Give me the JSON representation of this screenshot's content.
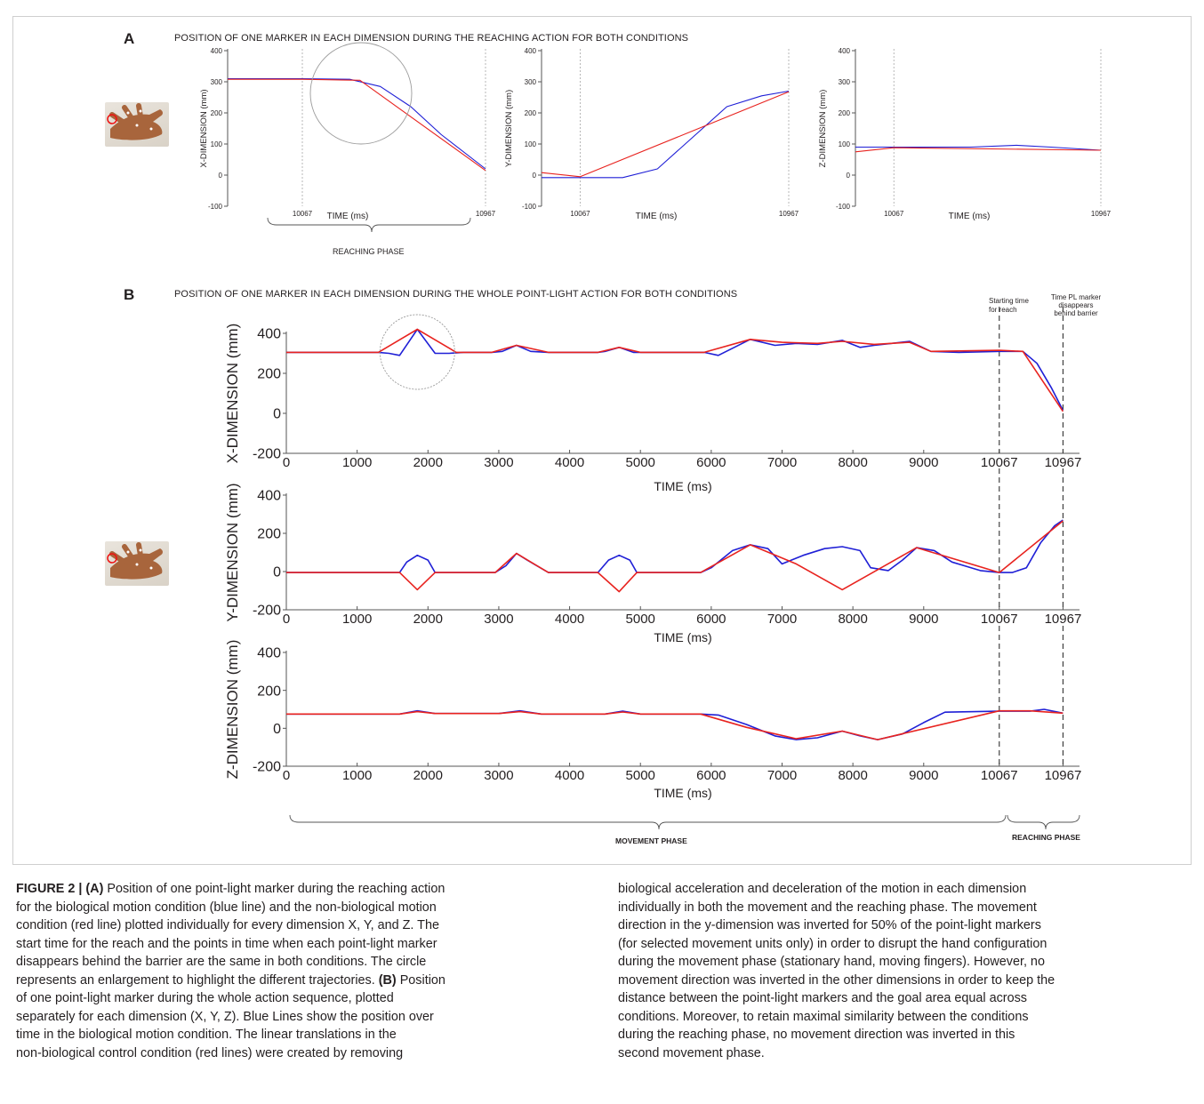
{
  "panel_a": {
    "letter": "A",
    "title": "POSITION OF ONE MARKER IN EACH DIMENSION DURING THE REACHING  ACTION FOR BOTH CONDITIONS",
    "phase_label": "REACHING PHASE"
  },
  "panel_b": {
    "letter": "B",
    "title": "POSITION OF ONE MARKER IN EACH DIMENSION DURING THE WHOLE POINT-LIGHT ACTION FOR BOTH CONDITIONS",
    "annotation_start": "Starting time for reach",
    "annotation_end": "Time PL marker disappears behind barrier",
    "movement_phase_label": "MOVEMENT PHASE",
    "reaching_phase_label": "REACHING PHASE"
  },
  "colors": {
    "biological": "#1f1fd6",
    "non_biological": "#e8231f",
    "axis": "#333333"
  },
  "chart_data": [
    {
      "type": "line",
      "panel": "A-X",
      "xlabel": "TIME (ms)",
      "ylabel": "X-DIMENSION (mm)",
      "xlim": [
        9700,
        10967
      ],
      "ylim": [
        -100,
        400
      ],
      "yticks": [
        -100,
        0,
        100,
        200,
        300,
        400
      ],
      "xtick_labels": [
        [
          "10067",
          10067
        ],
        [
          "10967",
          10967
        ]
      ],
      "vlines": [
        10067,
        10967
      ],
      "inset": true,
      "series": [
        {
          "color": "#1f1fd6",
          "x": [
            9700,
            10067,
            10300,
            10450,
            10600,
            10750,
            10967
          ],
          "y": [
            310,
            310,
            308,
            285,
            220,
            130,
            20
          ]
        },
        {
          "color": "#e8231f",
          "x": [
            9700,
            10067,
            10350,
            10967
          ],
          "y": [
            308,
            308,
            305,
            15
          ]
        }
      ]
    },
    {
      "type": "line",
      "panel": "A-Y",
      "xlabel": "TIME (ms)",
      "ylabel": "Y-DIMENSION (mm)",
      "xlim": [
        9900,
        10967
      ],
      "ylim": [
        -100,
        400
      ],
      "yticks": [
        -100,
        0,
        100,
        200,
        300,
        400
      ],
      "xtick_labels": [
        [
          "10067",
          10067
        ],
        [
          "10967",
          10967
        ]
      ],
      "vlines": [
        10067,
        10967
      ],
      "series": [
        {
          "color": "#1f1fd6",
          "x": [
            9900,
            10067,
            10250,
            10400,
            10550,
            10700,
            10850,
            10967
          ],
          "y": [
            -8,
            -8,
            -8,
            20,
            120,
            220,
            255,
            270
          ]
        },
        {
          "color": "#e8231f",
          "x": [
            9900,
            10067,
            10967
          ],
          "y": [
            8,
            -5,
            268
          ]
        }
      ]
    },
    {
      "type": "line",
      "panel": "A-Z",
      "xlabel": "TIME (ms)",
      "ylabel": "Z-DIMENSION (mm)",
      "xlim": [
        9900,
        10967
      ],
      "ylim": [
        -100,
        400
      ],
      "yticks": [
        -100,
        0,
        100,
        200,
        300,
        400
      ],
      "xtick_labels": [
        [
          "10067",
          10067
        ],
        [
          "10967",
          10967
        ]
      ],
      "vlines": [
        10067,
        10967
      ],
      "series": [
        {
          "color": "#1f1fd6",
          "x": [
            9900,
            10067,
            10400,
            10600,
            10750,
            10967
          ],
          "y": [
            90,
            90,
            90,
            96,
            90,
            80
          ]
        },
        {
          "color": "#e8231f",
          "x": [
            9900,
            10067,
            10967
          ],
          "y": [
            75,
            88,
            80
          ]
        }
      ]
    },
    {
      "type": "line",
      "panel": "B-X",
      "xlabel": "TIME (ms)",
      "ylabel": "X-DIMENSION (mm)",
      "xlim": [
        0,
        11200
      ],
      "ylim": [
        -200,
        400
      ],
      "yticks": [
        -200,
        0,
        200,
        400
      ],
      "xtick_labels": [
        [
          "0",
          0
        ],
        [
          "1000",
          1000
        ],
        [
          "2000",
          2000
        ],
        [
          "3000",
          3000
        ],
        [
          "4000",
          4000
        ],
        [
          "5000",
          5000
        ],
        [
          "6000",
          6000
        ],
        [
          "7000",
          7000
        ],
        [
          "8000",
          8000
        ],
        [
          "9000",
          9000
        ],
        [
          "10067",
          10067
        ],
        [
          "10967",
          10967
        ]
      ],
      "vlines": [
        10067,
        10967
      ],
      "inset": true,
      "series": [
        {
          "color": "#1f1fd6",
          "x": [
            0,
            1300,
            1450,
            1600,
            1850,
            2100,
            2300,
            2500,
            2900,
            3050,
            3250,
            3450,
            3700,
            4400,
            4500,
            4700,
            4900,
            5900,
            6100,
            6550,
            6900,
            7200,
            7500,
            7850,
            8100,
            8300,
            8550,
            8800,
            9100,
            9500,
            10067,
            10400,
            10600,
            10800,
            10967
          ],
          "y": [
            305,
            305,
            300,
            290,
            420,
            300,
            300,
            305,
            305,
            310,
            340,
            310,
            305,
            305,
            310,
            330,
            305,
            305,
            290,
            370,
            340,
            350,
            345,
            365,
            330,
            340,
            350,
            360,
            310,
            305,
            310,
            310,
            250,
            130,
            15
          ]
        },
        {
          "color": "#e8231f",
          "x": [
            0,
            1300,
            1850,
            2400,
            2900,
            3250,
            3700,
            4400,
            4700,
            5000,
            5900,
            6550,
            7000,
            7500,
            7850,
            8300,
            8800,
            9100,
            10067,
            10400,
            10967
          ],
          "y": [
            305,
            305,
            420,
            305,
            305,
            340,
            305,
            305,
            330,
            305,
            305,
            370,
            355,
            350,
            360,
            345,
            355,
            310,
            315,
            310,
            10
          ]
        }
      ]
    },
    {
      "type": "line",
      "panel": "B-Y",
      "xlabel": "TIME (ms)",
      "ylabel": "Y-DIMENSION (mm)",
      "xlim": [
        0,
        11200
      ],
      "ylim": [
        -200,
        400
      ],
      "yticks": [
        -200,
        0,
        200,
        400
      ],
      "xtick_labels": [
        [
          "0",
          0
        ],
        [
          "1000",
          1000
        ],
        [
          "2000",
          2000
        ],
        [
          "3000",
          3000
        ],
        [
          "4000",
          4000
        ],
        [
          "5000",
          5000
        ],
        [
          "6000",
          6000
        ],
        [
          "7000",
          7000
        ],
        [
          "8000",
          8000
        ],
        [
          "9000",
          9000
        ],
        [
          "10067",
          10067
        ],
        [
          "10967",
          10967
        ]
      ],
      "vlines": [
        10067,
        10967
      ],
      "series": [
        {
          "color": "#1f1fd6",
          "x": [
            0,
            1600,
            1700,
            1850,
            2000,
            2100,
            2950,
            3100,
            3250,
            3400,
            3700,
            4400,
            4550,
            4700,
            4850,
            4950,
            5850,
            6000,
            6300,
            6550,
            6800,
            7000,
            7300,
            7600,
            7850,
            8100,
            8250,
            8500,
            8700,
            8900,
            9150,
            9400,
            9800,
            10067,
            10250,
            10450,
            10650,
            10850,
            10967
          ],
          "y": [
            -5,
            -5,
            50,
            85,
            60,
            -5,
            -5,
            30,
            95,
            60,
            -5,
            -5,
            60,
            85,
            60,
            -5,
            -5,
            20,
            110,
            140,
            120,
            40,
            85,
            120,
            130,
            110,
            20,
            5,
            60,
            125,
            110,
            50,
            5,
            -5,
            -5,
            20,
            150,
            240,
            270
          ]
        },
        {
          "color": "#e8231f",
          "x": [
            0,
            1600,
            1850,
            2100,
            2950,
            3250,
            3700,
            4400,
            4700,
            4950,
            5850,
            6550,
            7200,
            7850,
            8400,
            8900,
            10067,
            10967
          ],
          "y": [
            -5,
            -5,
            -95,
            -5,
            -5,
            95,
            -5,
            -5,
            -105,
            -5,
            -5,
            140,
            40,
            -95,
            20,
            125,
            -5,
            265
          ]
        }
      ]
    },
    {
      "type": "line",
      "panel": "B-Z",
      "xlabel": "TIME (ms)",
      "ylabel": "Z-DIMENSION (mm)",
      "xlim": [
        0,
        11200
      ],
      "ylim": [
        -200,
        400
      ],
      "yticks": [
        -200,
        0,
        200,
        400
      ],
      "xtick_labels": [
        [
          "0",
          0
        ],
        [
          "1000",
          1000
        ],
        [
          "2000",
          2000
        ],
        [
          "3000",
          3000
        ],
        [
          "4000",
          4000
        ],
        [
          "5000",
          5000
        ],
        [
          "6000",
          6000
        ],
        [
          "7000",
          7000
        ],
        [
          "8000",
          8000
        ],
        [
          "9000",
          9000
        ],
        [
          "10067",
          10067
        ],
        [
          "10967",
          10967
        ]
      ],
      "vlines": [
        10067,
        10967
      ],
      "series": [
        {
          "color": "#1f1fd6",
          "x": [
            0,
            1600,
            1850,
            2100,
            3000,
            3300,
            3600,
            4500,
            4750,
            5000,
            5850,
            6100,
            6500,
            6900,
            7200,
            7500,
            7850,
            8100,
            8350,
            8700,
            9000,
            9300,
            10067,
            10500,
            10700,
            10967
          ],
          "y": [
            75,
            75,
            92,
            78,
            78,
            92,
            75,
            75,
            90,
            75,
            75,
            70,
            20,
            -40,
            -60,
            -50,
            -15,
            -40,
            -60,
            -30,
            30,
            85,
            90,
            90,
            100,
            80
          ]
        },
        {
          "color": "#e8231f",
          "x": [
            0,
            1600,
            1850,
            2100,
            3000,
            3300,
            3600,
            4500,
            4750,
            5000,
            5850,
            6500,
            7200,
            7850,
            8350,
            10067,
            10500,
            10967
          ],
          "y": [
            75,
            75,
            88,
            78,
            78,
            88,
            75,
            75,
            86,
            75,
            75,
            5,
            -55,
            -15,
            -60,
            92,
            92,
            80
          ]
        }
      ]
    }
  ],
  "caption": {
    "left": [
      {
        "b": "FIGURE 2 | (A)",
        "t": " Position of one point-light marker during the reaching action"
      },
      {
        "t": "for the biological motion condition (blue line) and the non-biological motion"
      },
      {
        "t": "condition (red line) plotted individually for every dimension X, Y, and Z. The"
      },
      {
        "t": "start time for the reach and the points in time when each point-light marker"
      },
      {
        "t": "disappears behind the barrier are the same in both conditions. The circle"
      },
      {
        "t": "represents an enlargement to highlight the different trajectories. ",
        "b2": "(B)",
        "t2": " Position"
      },
      {
        "t": "of one point-light marker during the whole action sequence, plotted"
      },
      {
        "t": "separately for each dimension (X, Y, Z). Blue Lines show the position over"
      },
      {
        "t": "time in the biological motion condition. The linear translations in the"
      },
      {
        "t": "non-biological control condition (red lines) were created by removing"
      }
    ],
    "right": [
      {
        "t": "biological acceleration and deceleration of the motion in each dimension"
      },
      {
        "t": "individually in both the movement and the reaching phase. The movement"
      },
      {
        "t": "direction in the y-dimension was inverted for 50% of the point-light markers"
      },
      {
        "t": "(for selected movement units only) in order to disrupt the hand configuration"
      },
      {
        "t": "during the movement phase (stationary hand, moving fingers). However, no"
      },
      {
        "t": "movement direction was inverted in the other dimensions in order to keep the"
      },
      {
        "t": "distance between the point-light markers and the goal area equal across"
      },
      {
        "t": "conditions. Moreover, to retain maximal similarity between the conditions"
      },
      {
        "t": "during the reaching phase, no movement direction was inverted in this"
      },
      {
        "t": "second movement phase."
      }
    ]
  }
}
